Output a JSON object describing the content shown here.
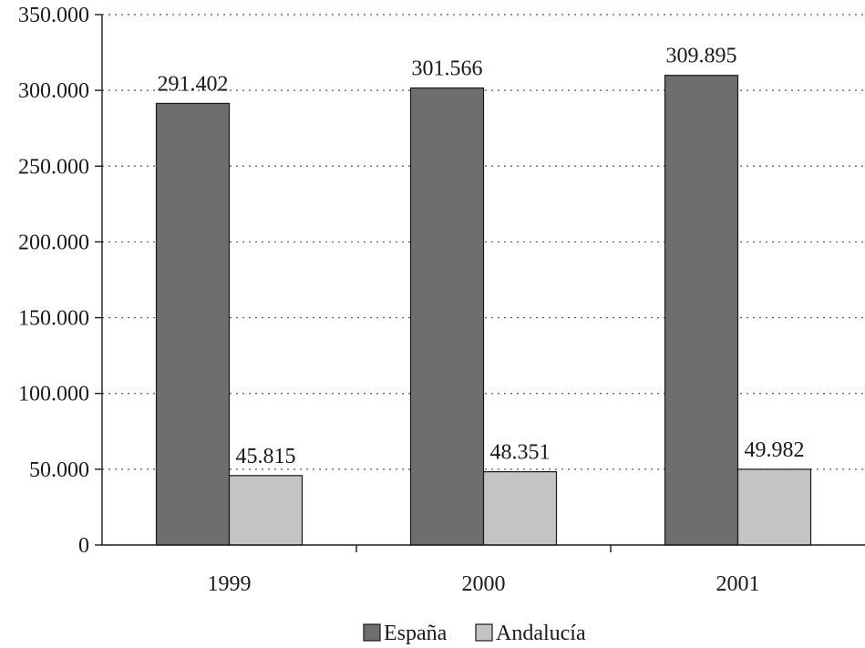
{
  "chart_data": {
    "type": "bar",
    "title": "",
    "xlabel": "",
    "ylabel": "",
    "categories": [
      "1999",
      "2000",
      "2001"
    ],
    "series": [
      {
        "name": "España",
        "values": [
          291402,
          301566,
          309895
        ],
        "labels": [
          "291.402",
          "301.566",
          "309.895"
        ],
        "color": "#6e6e6e"
      },
      {
        "name": "Andalucía",
        "values": [
          45815,
          48351,
          49982
        ],
        "labels": [
          "45.815",
          "48.351",
          "49.982"
        ],
        "color": "#c4c4c4"
      }
    ],
    "ylim": [
      0,
      350000
    ],
    "yticks": [
      0,
      50000,
      100000,
      150000,
      200000,
      250000,
      300000,
      350000
    ],
    "ytick_labels": [
      "0",
      "50.000",
      "100.000",
      "150.000",
      "200.000",
      "250.000",
      "300.000",
      "350.000"
    ],
    "grid": true,
    "legend_position": "bottom"
  }
}
